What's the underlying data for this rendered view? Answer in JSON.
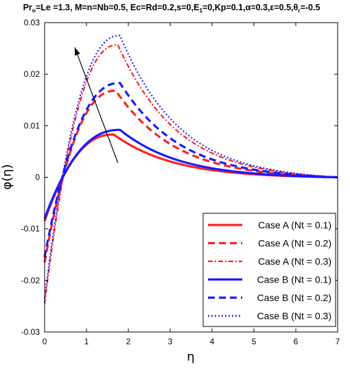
{
  "header": {
    "parts": [
      "Pr",
      "o",
      "=Le =1.3, M=n=Nb=0.5, Ec=Rd=0.2,s=0,E",
      "1",
      "=0,Kp=0.1,α=0.3,ε=0.5,θ",
      "r",
      "=-0.5"
    ]
  },
  "colors": {
    "red": "#ff2020",
    "blue": "#1a1aff"
  },
  "chart_data": {
    "type": "line",
    "title": "",
    "xlabel": "η",
    "ylabel": "φ(η)",
    "xlim": [
      0,
      7
    ],
    "ylim": [
      -0.03,
      0.03
    ],
    "xticks": [
      0,
      1,
      2,
      3,
      4,
      5,
      6,
      7
    ],
    "xtick_labels": [
      "0",
      "1",
      "2",
      "3",
      "4",
      "5",
      "6",
      "7"
    ],
    "yticks": [
      -0.03,
      -0.02,
      -0.01,
      0,
      0.01,
      0.02,
      0.03
    ],
    "ytick_labels": [
      "-0.03",
      "-0.02",
      "-0.01",
      "0",
      "0.01",
      "0.02",
      "0.03"
    ],
    "grid": false,
    "legend_position": "bottom-right",
    "annotation": {
      "type": "arrow",
      "from": [
        1.75,
        0.0028
      ],
      "to": [
        0.72,
        0.0252
      ]
    },
    "series": [
      {
        "name": "Case A (Nt = 0.1)",
        "color": "red",
        "style": "solid",
        "start": -0.0085,
        "peak_x": 1.65,
        "peak_y": 0.0083
      },
      {
        "name": "Case A (Nt = 0.2)",
        "color": "red",
        "style": "dashed",
        "start": -0.0165,
        "peak_x": 1.7,
        "peak_y": 0.0168
      },
      {
        "name": "Case A (Nt = 0.3)",
        "color": "red",
        "style": "dashdot",
        "start": -0.0245,
        "peak_x": 1.75,
        "peak_y": 0.0257
      },
      {
        "name": "Case B (Nt = 0.1)",
        "color": "blue",
        "style": "solid",
        "start": -0.008,
        "peak_x": 1.8,
        "peak_y": 0.0092
      },
      {
        "name": "Case B (Nt = 0.2)",
        "color": "blue",
        "style": "dashed",
        "start": -0.0155,
        "peak_x": 1.8,
        "peak_y": 0.0183
      },
      {
        "name": "Case B (Nt = 0.3)",
        "color": "blue",
        "style": "dotted",
        "start": -0.0235,
        "peak_x": 1.8,
        "peak_y": 0.0275
      }
    ]
  }
}
